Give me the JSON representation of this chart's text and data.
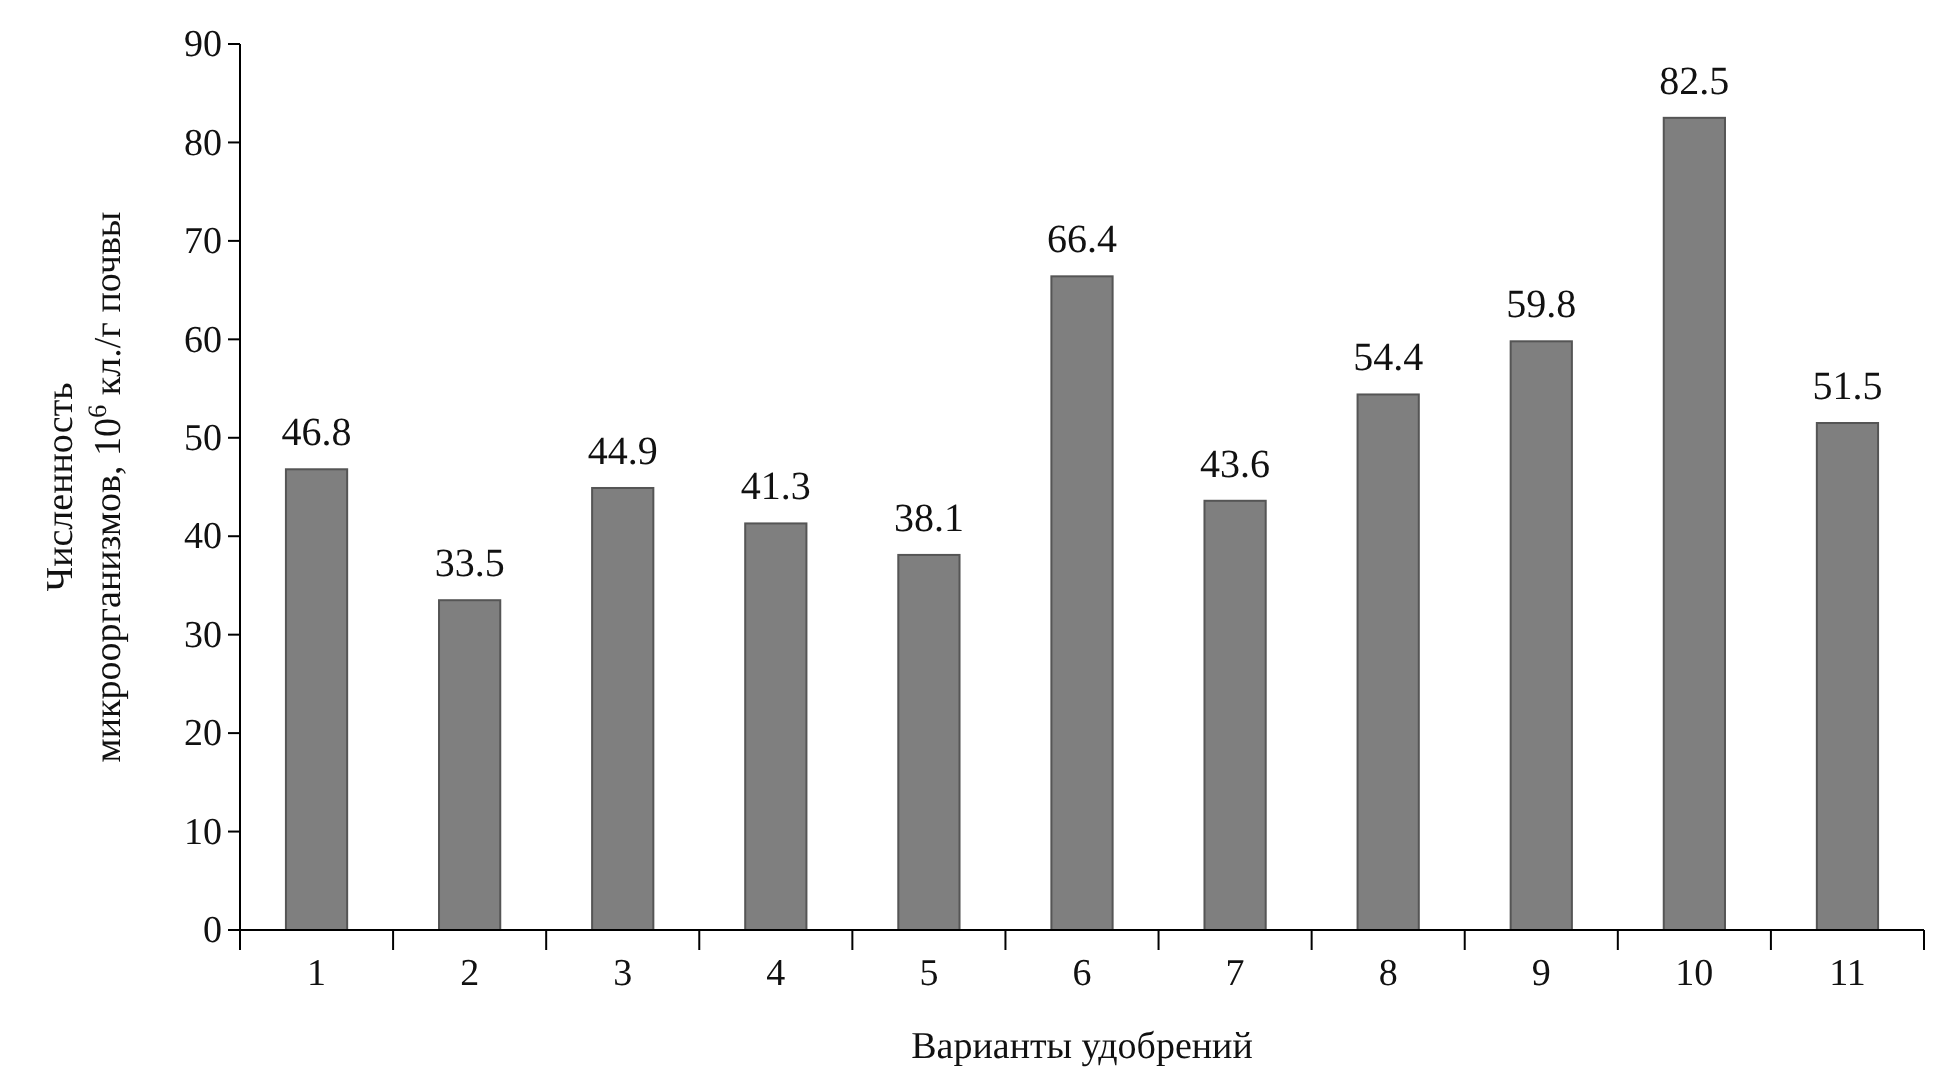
{
  "chart_data": {
    "type": "bar",
    "xlabel": "Варианты удобрений",
    "ylabel": "Численность микроорганизмов, 10$^{6}$ кл./г почвы",
    "categories": [
      "1",
      "2",
      "3",
      "4",
      "5",
      "6",
      "7",
      "8",
      "9",
      "10",
      "11"
    ],
    "values": [
      46.8,
      33.5,
      44.9,
      41.3,
      38.1,
      66.4,
      43.6,
      54.4,
      59.8,
      82.5,
      51.5
    ],
    "color": "#7f7f7f",
    "ylim": [
      0,
      90
    ],
    "yticks": [
      0,
      10,
      20,
      30,
      40,
      50,
      60,
      70,
      80,
      90
    ],
    "grid": false,
    "data_labels": true
  }
}
